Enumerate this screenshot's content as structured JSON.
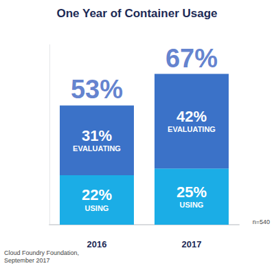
{
  "chart_data": {
    "type": "bar",
    "title": "One Year of Container Usage",
    "categories": [
      "2016",
      "2017"
    ],
    "series": [
      {
        "name": "USING",
        "color": "#1badE6",
        "values": [
          22,
          25
        ],
        "value_labels": [
          "22%",
          "25%"
        ]
      },
      {
        "name": "EVALUATING",
        "color": "#3b72c8",
        "values": [
          31,
          42
        ],
        "value_labels": [
          "31%",
          "42%"
        ]
      }
    ],
    "totals": [
      53,
      67
    ],
    "total_labels": [
      "53%",
      "67%"
    ],
    "note": "n=540",
    "source": "Cloud Foundry Foundation,\nSeptember 2017",
    "ylim": [
      0,
      80
    ],
    "stacked": true,
    "data_labels": true,
    "tick_labels": "x",
    "grid": false
  }
}
